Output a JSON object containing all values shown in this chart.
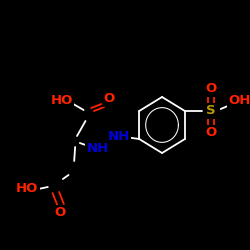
{
  "bg": "#000000",
  "white": "#ffffff",
  "red": "#ff2200",
  "blue": "#0000dd",
  "yellow": "#bb9900",
  "figsize": [
    2.5,
    2.5
  ],
  "dpi": 100,
  "xlim": [
    0,
    250
  ],
  "ylim": [
    0,
    250
  ]
}
